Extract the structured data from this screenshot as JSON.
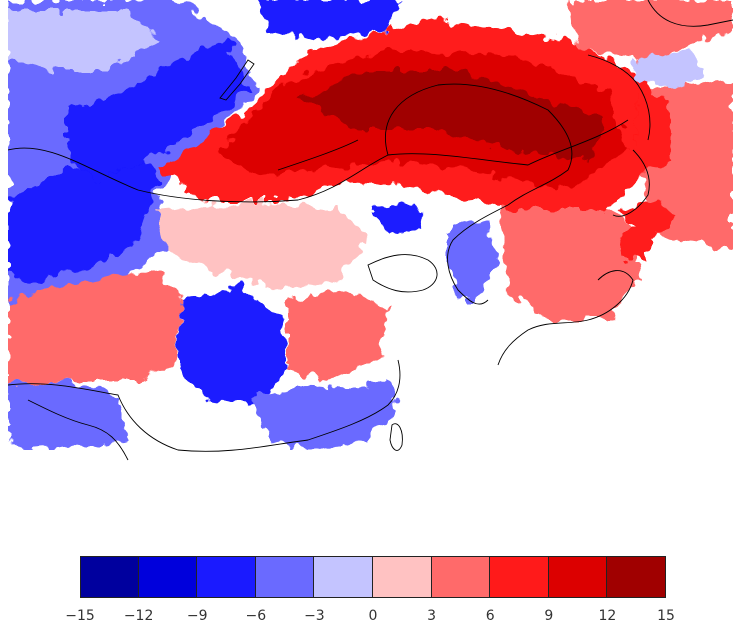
{
  "map": {
    "colorbar": {
      "colors": [
        "#00009e",
        "#0000dc",
        "#1a1aff",
        "#6a6aff",
        "#c4c4ff",
        "#ffc2c2",
        "#ff6a6a",
        "#ff1a1a",
        "#dc0000",
        "#a00000"
      ],
      "ticks": [
        "−15",
        "−12",
        "−9",
        "−6",
        "−3",
        "0",
        "3",
        "6",
        "9",
        "12",
        "15"
      ]
    }
  }
}
